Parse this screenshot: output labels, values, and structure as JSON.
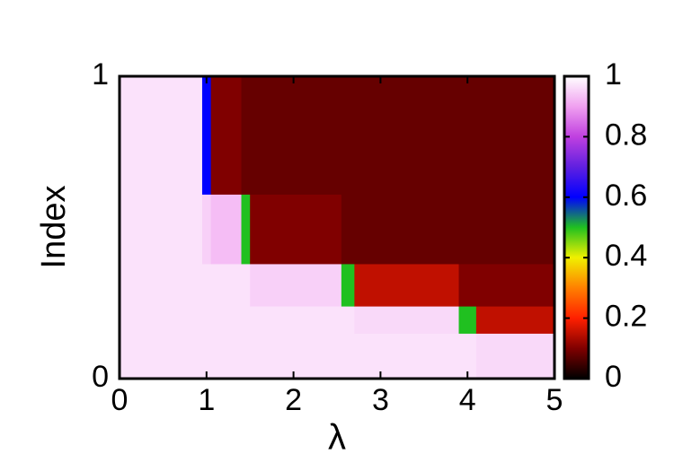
{
  "chart_data": {
    "type": "heatmap",
    "xlabel": "λ",
    "ylabel": "Index",
    "xlim": [
      0,
      5
    ],
    "xticks": [
      0,
      1,
      2,
      3,
      4,
      5
    ],
    "ylim": [
      0,
      1
    ],
    "yticks": [
      0,
      1
    ],
    "xbins": [
      0,
      0.95,
      1.05,
      1.4,
      1.5,
      2.55,
      2.7,
      3.9,
      4.1,
      5
    ],
    "ybins": [
      0,
      0.15,
      0.24,
      0.38,
      0.61,
      1
    ],
    "values": [
      [
        0.97,
        0.97,
        0.97,
        0.97,
        0.97,
        0.97,
        0.97,
        0.97,
        0.96
      ],
      [
        0.97,
        0.97,
        0.97,
        0.97,
        0.97,
        0.97,
        0.96,
        0.5,
        0.15
      ],
      [
        0.97,
        0.97,
        0.97,
        0.97,
        0.95,
        0.5,
        0.15,
        0.1,
        0.1
      ],
      [
        0.97,
        0.95,
        0.93,
        0.5,
        0.1,
        0.08,
        0.08,
        0.08,
        0.08
      ],
      [
        0.97,
        0.6,
        0.1,
        0.08,
        0.08,
        0.08,
        0.08,
        0.08,
        0.08
      ]
    ],
    "cblim": [
      0,
      1
    ],
    "cbticks": [
      0,
      0.2,
      0.4,
      0.6,
      0.8,
      1
    ],
    "colormap": [
      "#000000",
      "#800000",
      "#ff2000",
      "#ff8000",
      "#f0f000",
      "#20c020",
      "#0000ff",
      "#6020e0",
      "#c040e0",
      "#f0a0f0",
      "#ffffff"
    ]
  }
}
